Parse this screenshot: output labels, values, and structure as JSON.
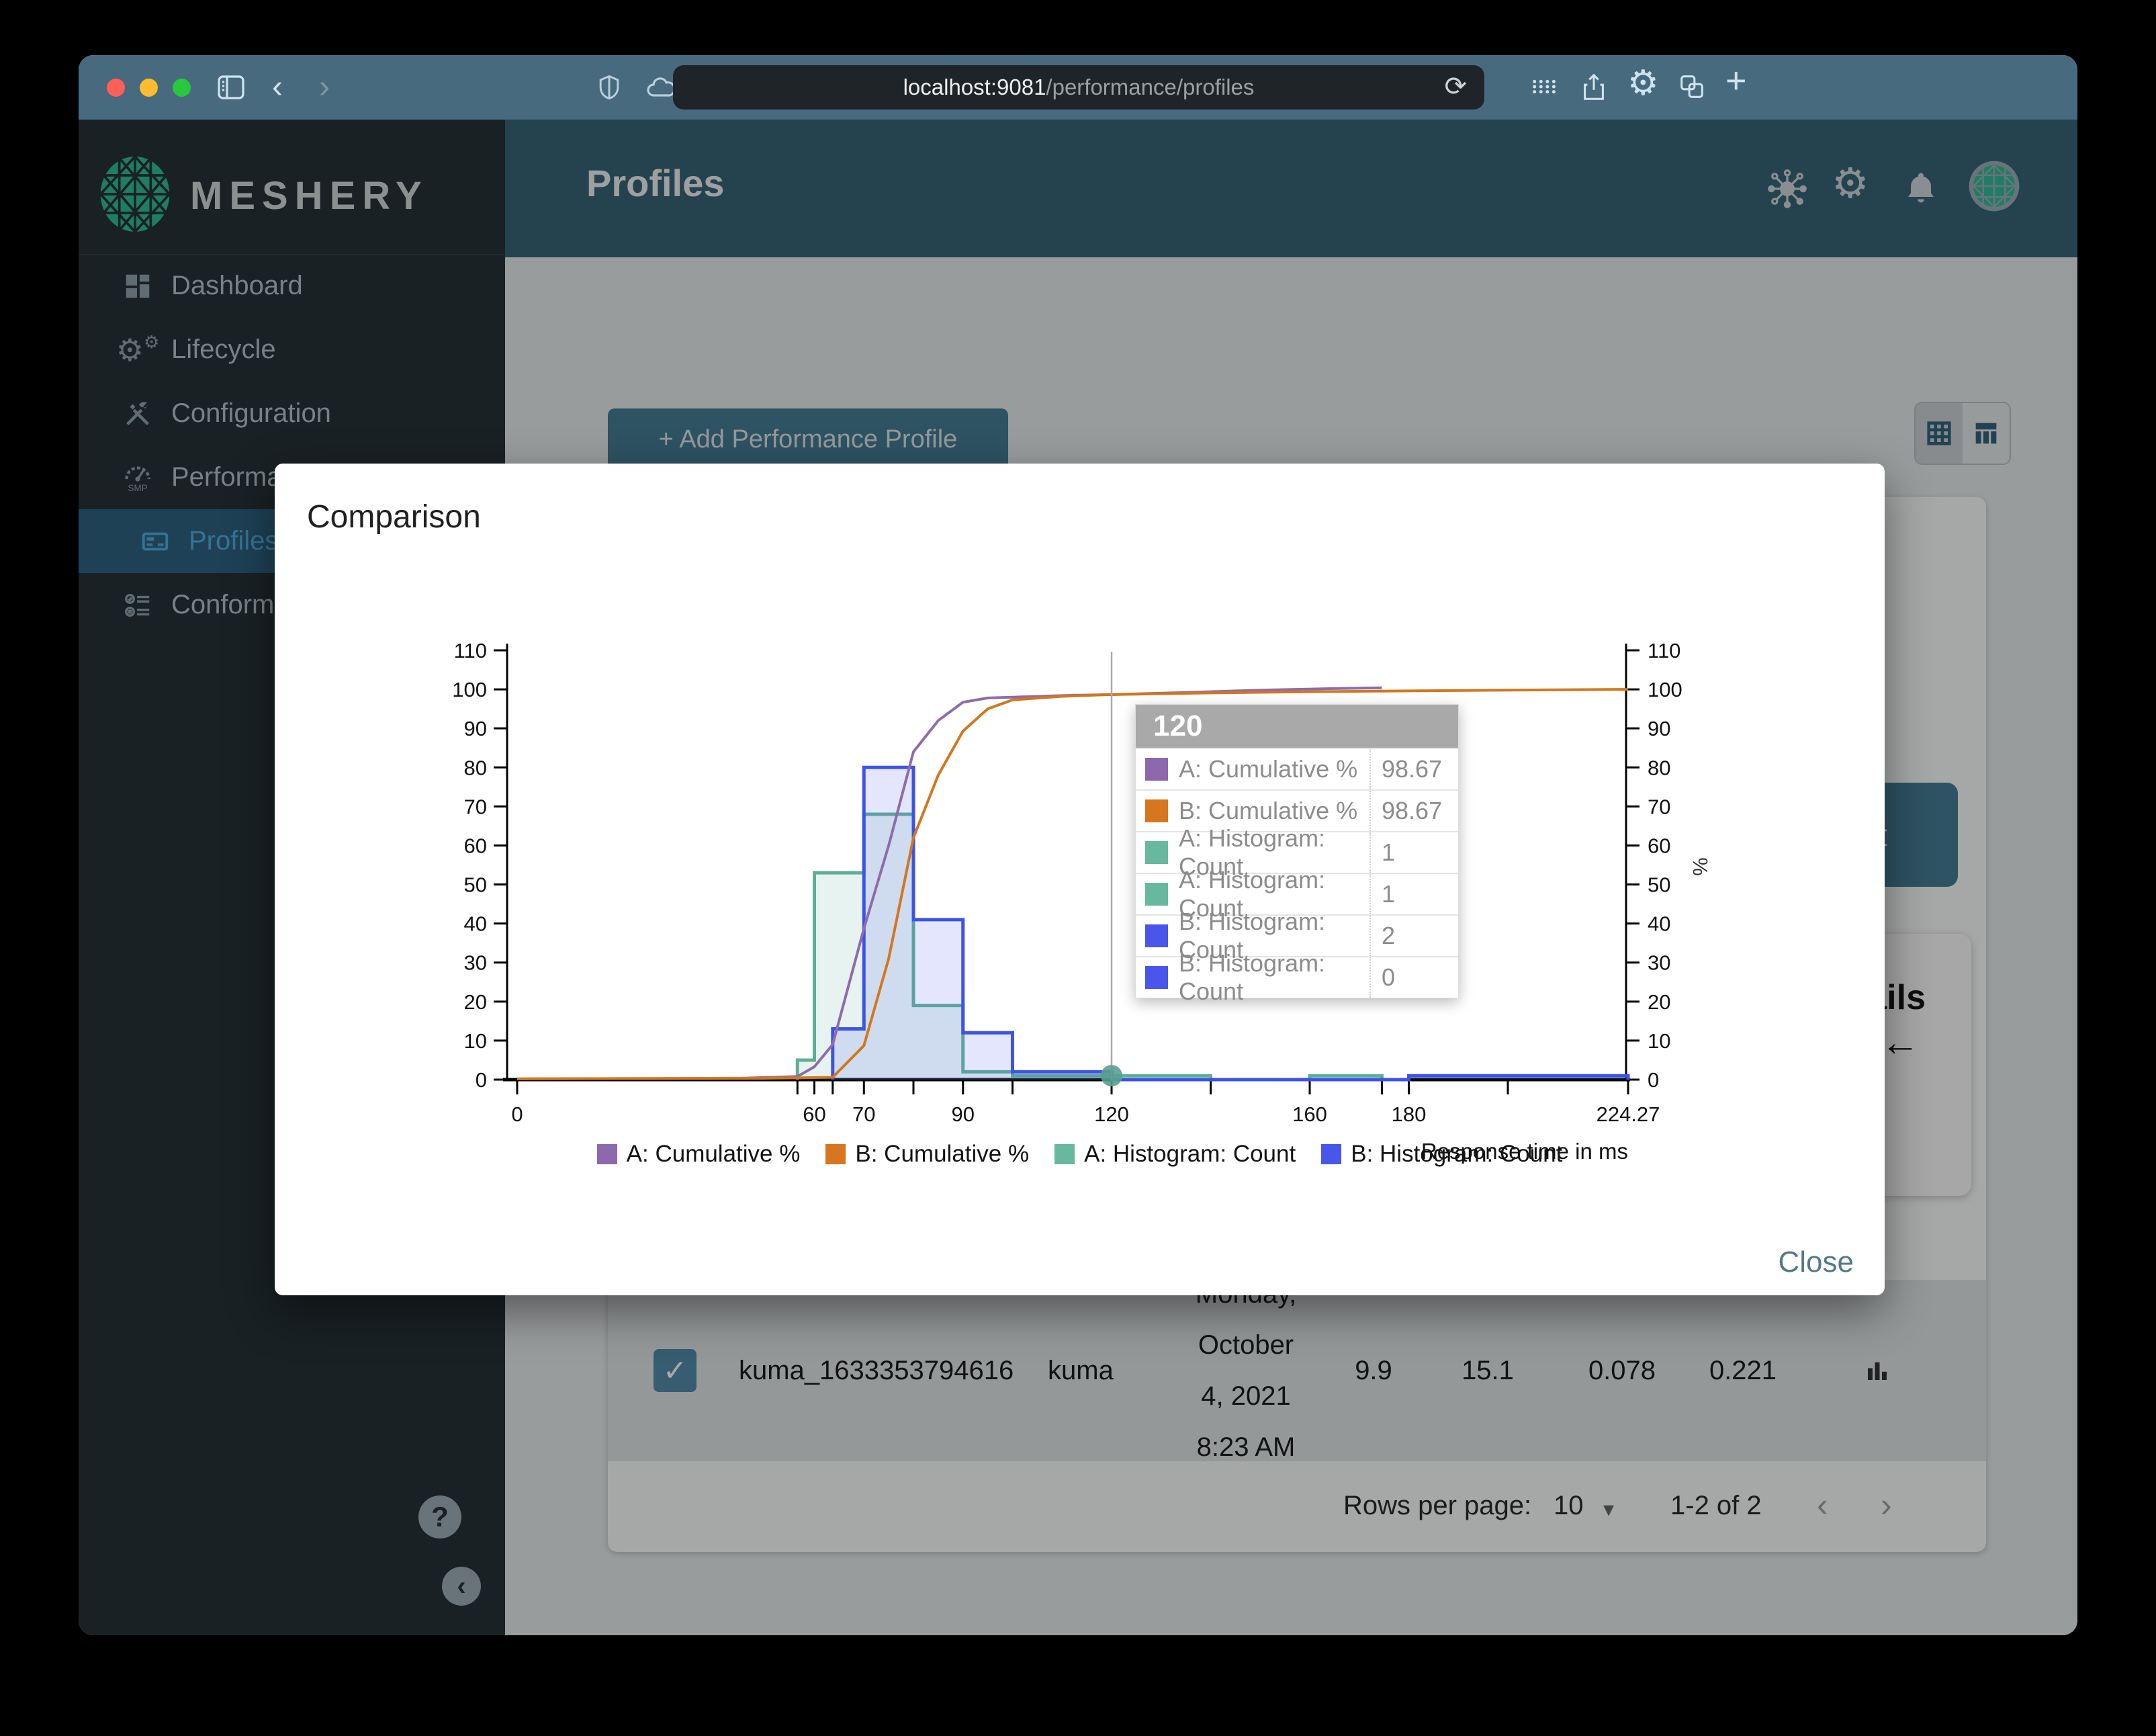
{
  "browser": {
    "url_host": "localhost:9081",
    "url_path": "/performance/profiles"
  },
  "sidebar": {
    "brand": "MESHERY",
    "items": [
      {
        "label": "Dashboard",
        "icon": "dashboard-icon",
        "selected": false,
        "indent": false
      },
      {
        "label": "Lifecycle",
        "icon": "lifecycle-icon",
        "selected": false,
        "indent": false
      },
      {
        "label": "Configuration",
        "icon": "configuration-icon",
        "selected": false,
        "indent": false
      },
      {
        "label": "Performance",
        "icon": "performance-icon",
        "selected": false,
        "indent": false
      },
      {
        "label": "Profiles",
        "icon": "profiles-icon",
        "selected": true,
        "indent": true
      },
      {
        "label": "Conformance",
        "icon": "conformance-icon",
        "selected": false,
        "indent": false
      }
    ],
    "help_glyph": "?",
    "collapse_glyph": "‹"
  },
  "header": {
    "title": "Profiles"
  },
  "content": {
    "add_button_label": "+ Add Performance Profile",
    "test_button_label": "Test",
    "details_heading": "Details",
    "back_arrow": "←",
    "table_row": {
      "checked_glyph": "✓",
      "name": "kuma_1633353794616",
      "mesh": "kuma",
      "date_lines": [
        "Monday,",
        "October",
        "4, 2021",
        "8:23 AM"
      ],
      "qps": "9.9",
      "duration": "15.1",
      "p50": "0.078",
      "p99": "0.221"
    },
    "pagination": {
      "rows_per_page_label": "Rows per page:",
      "rows_per_page_value": "10",
      "caret": "▾",
      "range": "1-2 of 2",
      "prev": "‹",
      "next": "›"
    }
  },
  "modal": {
    "title": "Comparison",
    "close_label": "Close",
    "tooltip": {
      "header": "120",
      "rows": [
        {
          "color": "#8e68ad",
          "label": "A: Cumulative %",
          "value": "98.67"
        },
        {
          "color": "#d8751f",
          "label": "B: Cumulative %",
          "value": "98.67"
        },
        {
          "color": "#68b79f",
          "label": "A: Histogram: Count",
          "value": "1"
        },
        {
          "color": "#68b79f",
          "label": "A: Histogram: Count",
          "value": "1"
        },
        {
          "color": "#4a55ec",
          "label": "B: Histogram: Count",
          "value": "2"
        },
        {
          "color": "#4a55ec",
          "label": "B: Histogram: Count",
          "value": "0"
        }
      ]
    }
  },
  "chart_data": {
    "type": "line+histogram",
    "xlabel": "Response time in ms",
    "ylabel_right": "%",
    "xlim": [
      0,
      224.27
    ],
    "ylim": [
      0,
      110
    ],
    "y_tick_step": 10,
    "x_ticks": [
      {
        "v": 0,
        "label": "0"
      },
      {
        "v": 56.58,
        "label": ""
      },
      {
        "v": 60,
        "label": "60"
      },
      {
        "v": 63.7,
        "label": ""
      },
      {
        "v": 70,
        "label": "70"
      },
      {
        "v": 80,
        "label": ""
      },
      {
        "v": 90,
        "label": "90"
      },
      {
        "v": 100,
        "label": ""
      },
      {
        "v": 120,
        "label": "120"
      },
      {
        "v": 140,
        "label": ""
      },
      {
        "v": 160,
        "label": "160"
      },
      {
        "v": 174.57,
        "label": ""
      },
      {
        "v": 180,
        "label": "180"
      },
      {
        "v": 200,
        "label": ""
      },
      {
        "v": 224.27,
        "label": "224.27"
      }
    ],
    "histograms": [
      {
        "name": "A: Histogram: Count",
        "stroke": "#5fae97",
        "fill": "rgba(105,183,159,0.16)",
        "edges": [
          56.58,
          60,
          70,
          80,
          90,
          100,
          120,
          140,
          160,
          174.57
        ],
        "counts": [
          5,
          53,
          68,
          19,
          2,
          1,
          1,
          0,
          1
        ]
      },
      {
        "name": "B: Histogram: Count",
        "stroke": "#3d53e6",
        "fill": "rgba(80,100,235,0.16)",
        "edges": [
          63.7,
          70,
          80,
          90,
          100,
          120,
          180,
          224.27
        ],
        "counts": [
          13,
          80,
          41,
          12,
          2,
          0,
          1
        ]
      }
    ],
    "lines": [
      {
        "name": "A: Cumulative %",
        "stroke": "#8f6bae",
        "points": [
          [
            0,
            0.2
          ],
          [
            45,
            0.35
          ],
          [
            56.58,
            0.8
          ],
          [
            60,
            3.3
          ],
          [
            63.7,
            9
          ],
          [
            70,
            38.7
          ],
          [
            75,
            60
          ],
          [
            80,
            84
          ],
          [
            85,
            92
          ],
          [
            90,
            96.7
          ],
          [
            95,
            97.8
          ],
          [
            100,
            98
          ],
          [
            110,
            98.4
          ],
          [
            120,
            98.67
          ],
          [
            135,
            99.2
          ],
          [
            150,
            99.8
          ],
          [
            165,
            100.2
          ],
          [
            174.57,
            100.4
          ]
        ]
      },
      {
        "name": "B: Cumulative %",
        "stroke": "#d2771e",
        "points": [
          [
            0,
            0.2
          ],
          [
            50,
            0.35
          ],
          [
            56.58,
            0.45
          ],
          [
            63.7,
            0.6
          ],
          [
            70,
            8.7
          ],
          [
            75,
            31
          ],
          [
            80,
            62
          ],
          [
            85,
            78
          ],
          [
            90,
            89.3
          ],
          [
            95,
            95
          ],
          [
            100,
            97.3
          ],
          [
            110,
            98.2
          ],
          [
            120,
            98.67
          ],
          [
            140,
            99.1
          ],
          [
            160,
            99.4
          ],
          [
            180,
            99.6
          ],
          [
            200,
            99.8
          ],
          [
            224.27,
            100
          ]
        ]
      }
    ],
    "crosshair": {
      "x": 120,
      "dot_value": 1,
      "dot_color": "#58a08e"
    },
    "legend": [
      {
        "color": "#8e68ad",
        "label": "A: Cumulative %"
      },
      {
        "color": "#d8751f",
        "label": "B: Cumulative %"
      },
      {
        "color": "#68b79f",
        "label": "A: Histogram: Count"
      },
      {
        "color": "#4a55ec",
        "label": "B: Histogram: Count"
      }
    ]
  }
}
